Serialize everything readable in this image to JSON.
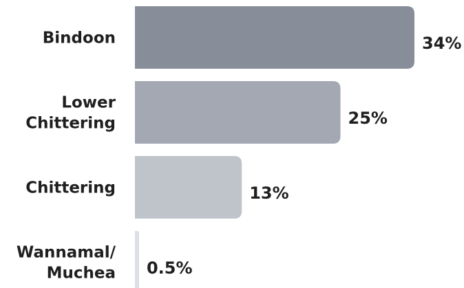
{
  "chart_data": {
    "type": "bar",
    "orientation": "horizontal",
    "categories": [
      "Bindoon",
      "Lower Chittering",
      "Chittering",
      "Wannamal/ Muchea"
    ],
    "category_lines": [
      [
        "Bindoon"
      ],
      [
        "Lower",
        "Chittering"
      ],
      [
        "Chittering"
      ],
      [
        "Wannamal/",
        "Muchea"
      ]
    ],
    "values": [
      34,
      25,
      13,
      0.5
    ],
    "value_labels": [
      "34%",
      "25%",
      "13%",
      "0.5%"
    ],
    "bar_colors": [
      "#878e99",
      "#a3a8b3",
      "#bfc3ca",
      "#dcdfe3"
    ],
    "unit": "%",
    "xlim": [
      0,
      34
    ],
    "grid": false,
    "legend": "none"
  }
}
